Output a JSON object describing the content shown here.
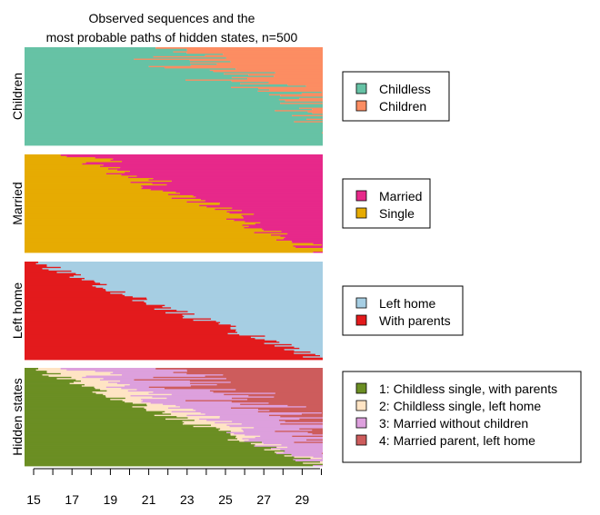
{
  "chart_data": {
    "type": "heatmap",
    "title_lines": [
      "Observed sequences and the",
      "most probable paths of hidden states, n=500"
    ],
    "x_tick_labels": [
      "15",
      "17",
      "19",
      "21",
      "23",
      "25",
      "27",
      "29"
    ],
    "x_range": [
      15,
      30
    ],
    "n_sequences": 500,
    "channels": [
      {
        "ylabel": "Children",
        "legend": [
          {
            "label": "Childless",
            "color": "#66C2A5"
          },
          {
            "label": "Children",
            "color": "#FC8D62"
          }
        ]
      },
      {
        "ylabel": "Married",
        "legend": [
          {
            "label": "Married",
            "color": "#E7298A"
          },
          {
            "label": "Single",
            "color": "#E6AB02"
          }
        ]
      },
      {
        "ylabel": "Left home",
        "legend": [
          {
            "label": "Left home",
            "color": "#A6CEE3"
          },
          {
            "label": "With parents",
            "color": "#E31A1C"
          }
        ]
      },
      {
        "ylabel": "Hidden states",
        "legend": [
          {
            "label": "1: Childless single, with parents",
            "color": "#6B8E23"
          },
          {
            "label": "2: Childless single, left home",
            "color": "#FFE4C4"
          },
          {
            "label": "3: Married without children",
            "color": "#DDA0DD"
          },
          {
            "label": "4: Married parent, left home",
            "color": "#CD5C5C"
          }
        ]
      }
    ]
  }
}
